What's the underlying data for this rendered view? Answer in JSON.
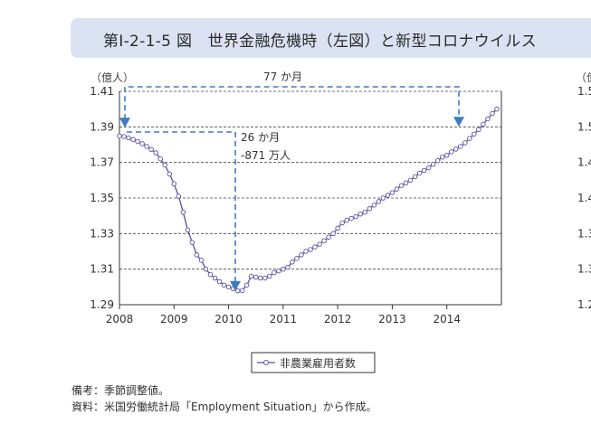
{
  "header": {
    "title": "第Ⅰ-2-1-5 図　世界金融危機時（左図）と新型コロナウイルス"
  },
  "chart_data": {
    "type": "line",
    "unit_label": "（億人）",
    "ylim": [
      1.29,
      1.41
    ],
    "y_ticks": [
      "1.41",
      "1.39",
      "1.37",
      "1.35",
      "1.33",
      "1.31",
      "1.29"
    ],
    "y_tick_values": [
      1.41,
      1.39,
      1.37,
      1.35,
      1.33,
      1.31,
      1.29
    ],
    "x_ticks": [
      "2008",
      "2009",
      "2010",
      "2011",
      "2012",
      "2013",
      "2014"
    ],
    "xlim": [
      2008.0,
      2015.0
    ],
    "grid": "horizontal dashed",
    "series": [
      {
        "name": "非農業雇用者数",
        "color": "#5a4fa0",
        "x": [
          2008.0,
          2008.083,
          2008.167,
          2008.25,
          2008.333,
          2008.417,
          2008.5,
          2008.583,
          2008.667,
          2008.75,
          2008.833,
          2008.917,
          2009.0,
          2009.083,
          2009.167,
          2009.25,
          2009.333,
          2009.417,
          2009.5,
          2009.583,
          2009.667,
          2009.75,
          2009.833,
          2009.917,
          2010.0,
          2010.083,
          2010.167,
          2010.25,
          2010.333,
          2010.417,
          2010.5,
          2010.583,
          2010.667,
          2010.75,
          2010.833,
          2010.917,
          2011.0,
          2011.083,
          2011.167,
          2011.25,
          2011.333,
          2011.417,
          2011.5,
          2011.583,
          2011.667,
          2011.75,
          2011.833,
          2011.917,
          2012.0,
          2012.083,
          2012.167,
          2012.25,
          2012.333,
          2012.417,
          2012.5,
          2012.583,
          2012.667,
          2012.75,
          2012.833,
          2012.917,
          2013.0,
          2013.083,
          2013.167,
          2013.25,
          2013.333,
          2013.417,
          2013.5,
          2013.583,
          2013.667,
          2013.75,
          2013.833,
          2013.917,
          2014.0,
          2014.083,
          2014.167,
          2014.25,
          2014.333,
          2014.417,
          2014.5,
          2014.583,
          2014.667,
          2014.75,
          2014.833,
          2014.917
        ],
        "values": [
          1.3849,
          1.3846,
          1.3838,
          1.3829,
          1.3818,
          1.3806,
          1.379,
          1.3773,
          1.3754,
          1.372,
          1.3685,
          1.3635,
          1.358,
          1.351,
          1.342,
          1.332,
          1.325,
          1.318,
          1.315,
          1.31,
          1.307,
          1.305,
          1.303,
          1.301,
          1.3,
          1.299,
          1.2978,
          1.298,
          1.301,
          1.306,
          1.3055,
          1.305,
          1.305,
          1.306,
          1.308,
          1.309,
          1.31,
          1.311,
          1.314,
          1.316,
          1.318,
          1.32,
          1.321,
          1.3225,
          1.324,
          1.326,
          1.328,
          1.33,
          1.333,
          1.336,
          1.3375,
          1.3385,
          1.3395,
          1.341,
          1.342,
          1.344,
          1.346,
          1.348,
          1.35,
          1.3515,
          1.353,
          1.355,
          1.357,
          1.3585,
          1.36,
          1.362,
          1.364,
          1.3655,
          1.367,
          1.369,
          1.371,
          1.373,
          1.374,
          1.376,
          1.3775,
          1.379,
          1.381,
          1.3835,
          1.386,
          1.3885,
          1.3915,
          1.3945,
          1.3975,
          1.4
        ]
      }
    ],
    "annotations": {
      "long_span": "77 か月",
      "short_span_months": "26 か月",
      "short_span_change": "-871 万人"
    }
  },
  "notes": {
    "line1": "備考：季節調整値。",
    "line2": "資料：米国労働統計局「Employment Situation」から作成。"
  },
  "right_panel": {
    "unit_label": "（億",
    "y_ticks": [
      "1.5",
      "1.5",
      "1.4",
      "1.4",
      "1.3",
      "1.3",
      "1.2"
    ]
  }
}
